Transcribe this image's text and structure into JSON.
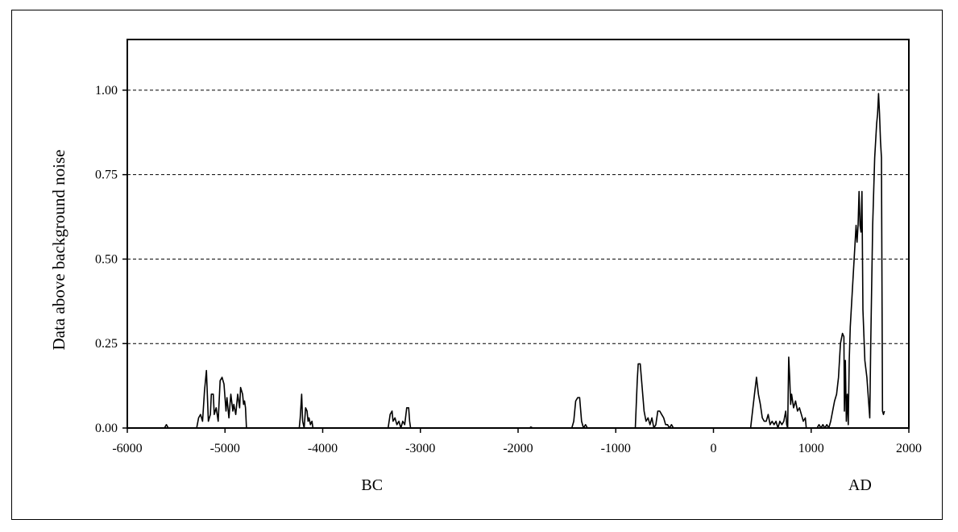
{
  "chart_data": {
    "type": "line",
    "ylabel": "Data above background noise",
    "xlim": [
      -6000,
      2000
    ],
    "ylim": [
      0,
      1.15
    ],
    "xticks": [
      -6000,
      -5000,
      -4000,
      -3000,
      -2000,
      -1000,
      0,
      1000,
      2000
    ],
    "xtick_labels": [
      "-6000",
      "-5000",
      "-4000",
      "-3000",
      "-2000",
      "-1000",
      "0",
      "1000",
      "2000"
    ],
    "yticks": [
      0,
      0.25,
      0.5,
      0.75,
      1.0
    ],
    "ytick_labels": [
      "0.00",
      "0.25",
      "0.50",
      "0.75",
      "1.00"
    ],
    "era_labels": [
      "BC",
      "AD"
    ],
    "grid": "horizontal dashed",
    "legend": "none",
    "series": [
      {
        "color": "#000000",
        "points": [
          [
            -5620,
            0.0
          ],
          [
            -5600,
            0.01
          ],
          [
            -5580,
            0.0
          ],
          [
            -5290,
            0.0
          ],
          [
            -5270,
            0.03
          ],
          [
            -5250,
            0.04
          ],
          [
            -5230,
            0.02
          ],
          [
            -5210,
            0.11
          ],
          [
            -5190,
            0.17
          ],
          [
            -5170,
            0.02
          ],
          [
            -5150,
            0.04
          ],
          [
            -5140,
            0.1
          ],
          [
            -5120,
            0.1
          ],
          [
            -5110,
            0.04
          ],
          [
            -5090,
            0.06
          ],
          [
            -5070,
            0.02
          ],
          [
            -5050,
            0.14
          ],
          [
            -5030,
            0.15
          ],
          [
            -5010,
            0.13
          ],
          [
            -4990,
            0.05
          ],
          [
            -4980,
            0.09
          ],
          [
            -4960,
            0.03
          ],
          [
            -4940,
            0.1
          ],
          [
            -4920,
            0.05
          ],
          [
            -4910,
            0.07
          ],
          [
            -4890,
            0.04
          ],
          [
            -4870,
            0.1
          ],
          [
            -4850,
            0.06
          ],
          [
            -4840,
            0.12
          ],
          [
            -4820,
            0.1
          ],
          [
            -4810,
            0.07
          ],
          [
            -4800,
            0.08
          ],
          [
            -4790,
            0.06
          ],
          [
            -4780,
            0.0
          ],
          [
            -4240,
            0.0
          ],
          [
            -4230,
            0.03
          ],
          [
            -4215,
            0.1
          ],
          [
            -4205,
            0.02
          ],
          [
            -4190,
            0.0
          ],
          [
            -4175,
            0.06
          ],
          [
            -4160,
            0.05
          ],
          [
            -4150,
            0.02
          ],
          [
            -4140,
            0.03
          ],
          [
            -4125,
            0.01
          ],
          [
            -4110,
            0.02
          ],
          [
            -4100,
            0.0
          ],
          [
            -3330,
            0.0
          ],
          [
            -3310,
            0.04
          ],
          [
            -3290,
            0.05
          ],
          [
            -3280,
            0.02
          ],
          [
            -3260,
            0.03
          ],
          [
            -3240,
            0.01
          ],
          [
            -3220,
            0.02
          ],
          [
            -3200,
            0.0
          ],
          [
            -3180,
            0.02
          ],
          [
            -3160,
            0.01
          ],
          [
            -3140,
            0.06
          ],
          [
            -3120,
            0.06
          ],
          [
            -3110,
            0.02
          ],
          [
            -3100,
            0.0
          ],
          [
            -1880,
            0.0
          ],
          [
            -1870,
            0.003
          ],
          [
            -1850,
            0.0
          ],
          [
            -1450,
            0.0
          ],
          [
            -1430,
            0.02
          ],
          [
            -1410,
            0.08
          ],
          [
            -1390,
            0.09
          ],
          [
            -1370,
            0.09
          ],
          [
            -1350,
            0.02
          ],
          [
            -1330,
            0.0
          ],
          [
            -1310,
            0.01
          ],
          [
            -1290,
            0.0
          ],
          [
            -800,
            0.0
          ],
          [
            -780,
            0.14
          ],
          [
            -770,
            0.19
          ],
          [
            -750,
            0.19
          ],
          [
            -730,
            0.12
          ],
          [
            -710,
            0.05
          ],
          [
            -690,
            0.02
          ],
          [
            -670,
            0.03
          ],
          [
            -650,
            0.01
          ],
          [
            -630,
            0.03
          ],
          [
            -610,
            0.0
          ],
          [
            -590,
            0.01
          ],
          [
            -570,
            0.05
          ],
          [
            -550,
            0.05
          ],
          [
            -530,
            0.04
          ],
          [
            -510,
            0.03
          ],
          [
            -490,
            0.01
          ],
          [
            -470,
            0.01
          ],
          [
            -450,
            0.0
          ],
          [
            -430,
            0.01
          ],
          [
            -410,
            0.0
          ],
          [
            380,
            0.0
          ],
          [
            400,
            0.05
          ],
          [
            420,
            0.1
          ],
          [
            440,
            0.15
          ],
          [
            460,
            0.1
          ],
          [
            480,
            0.07
          ],
          [
            500,
            0.03
          ],
          [
            520,
            0.02
          ],
          [
            540,
            0.02
          ],
          [
            560,
            0.04
          ],
          [
            580,
            0.01
          ],
          [
            600,
            0.02
          ],
          [
            620,
            0.01
          ],
          [
            640,
            0.02
          ],
          [
            660,
            0.0
          ],
          [
            680,
            0.02
          ],
          [
            700,
            0.01
          ],
          [
            720,
            0.02
          ],
          [
            740,
            0.05
          ],
          [
            750,
            0.01
          ],
          [
            760,
            0.0
          ],
          [
            770,
            0.21
          ],
          [
            780,
            0.15
          ],
          [
            790,
            0.07
          ],
          [
            800,
            0.1
          ],
          [
            820,
            0.06
          ],
          [
            840,
            0.08
          ],
          [
            860,
            0.05
          ],
          [
            880,
            0.06
          ],
          [
            900,
            0.04
          ],
          [
            920,
            0.02
          ],
          [
            940,
            0.03
          ],
          [
            950,
            0.0
          ],
          [
            1060,
            0.0
          ],
          [
            1080,
            0.01
          ],
          [
            1100,
            0.0
          ],
          [
            1120,
            0.01
          ],
          [
            1140,
            0.0
          ],
          [
            1160,
            0.01
          ],
          [
            1180,
            0.0
          ],
          [
            1200,
            0.02
          ],
          [
            1220,
            0.05
          ],
          [
            1240,
            0.08
          ],
          [
            1260,
            0.1
          ],
          [
            1280,
            0.15
          ],
          [
            1300,
            0.25
          ],
          [
            1320,
            0.28
          ],
          [
            1335,
            0.27
          ],
          [
            1340,
            0.05
          ],
          [
            1350,
            0.2
          ],
          [
            1360,
            0.02
          ],
          [
            1370,
            0.1
          ],
          [
            1380,
            0.01
          ],
          [
            1390,
            0.2
          ],
          [
            1400,
            0.3
          ],
          [
            1420,
            0.4
          ],
          [
            1440,
            0.5
          ],
          [
            1460,
            0.6
          ],
          [
            1470,
            0.55
          ],
          [
            1480,
            0.6
          ],
          [
            1490,
            0.7
          ],
          [
            1500,
            0.6
          ],
          [
            1510,
            0.58
          ],
          [
            1520,
            0.7
          ],
          [
            1530,
            0.35
          ],
          [
            1550,
            0.2
          ],
          [
            1570,
            0.15
          ],
          [
            1590,
            0.07
          ],
          [
            1600,
            0.03
          ],
          [
            1610,
            0.25
          ],
          [
            1630,
            0.6
          ],
          [
            1650,
            0.8
          ],
          [
            1670,
            0.9
          ],
          [
            1680,
            0.93
          ],
          [
            1690,
            0.99
          ],
          [
            1700,
            0.93
          ],
          [
            1710,
            0.85
          ],
          [
            1720,
            0.8
          ],
          [
            1730,
            0.05
          ],
          [
            1740,
            0.04
          ],
          [
            1750,
            0.05
          ]
        ]
      }
    ]
  }
}
